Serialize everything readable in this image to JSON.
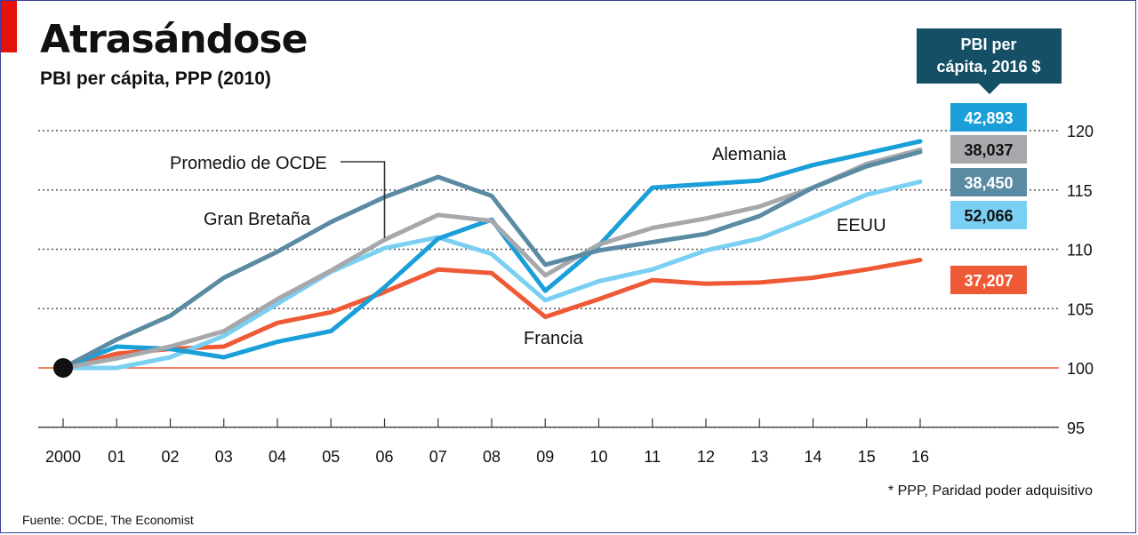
{
  "title": "Atrasándose",
  "subtitle": "PBI per cápita, PPP (2010)",
  "source": "Fuente: OCDE, The Economist",
  "footnote": "* PPP, Paridad poder adquisitivo",
  "legend_header": [
    "PBI per",
    "cápita, 2016 $"
  ],
  "colors": {
    "alemania": "#1a9fd8",
    "ocde": "#a6a8ab",
    "gran_bretana": "#5b8aa3",
    "eeuu": "#7ad0f2",
    "francia": "#ee5a36",
    "header": "#154f66",
    "baseline": "#ee5a36"
  },
  "chart_data": {
    "type": "line",
    "x": [
      "2000",
      "01",
      "02",
      "03",
      "04",
      "05",
      "06",
      "07",
      "08",
      "09",
      "10",
      "11",
      "12",
      "13",
      "14",
      "15",
      "16"
    ],
    "ylim": [
      95,
      121
    ],
    "yticks": [
      95,
      100,
      105,
      110,
      115,
      120
    ],
    "baseline": 100,
    "grid": true,
    "series": [
      {
        "key": "ocde",
        "name": "Promedio de OCDE",
        "color": "#a6a8ab",
        "values": [
          100,
          100.8,
          101.8,
          103.1,
          105.8,
          108.2,
          110.8,
          112.9,
          112.4,
          107.8,
          110.4,
          111.8,
          112.6,
          113.6,
          115.2,
          117.2,
          118.4
        ],
        "value_2016": "38,037"
      },
      {
        "key": "alemania",
        "name": "Alemania",
        "color": "#1a9fd8",
        "values": [
          100,
          101.8,
          101.6,
          100.9,
          102.2,
          103.1,
          106.8,
          110.9,
          112.5,
          106.5,
          110.3,
          115.2,
          115.5,
          115.8,
          117.1,
          118.1,
          119.1
        ],
        "value_2016": "42,893"
      },
      {
        "key": "gran_bretana",
        "name": "Gran Bretaña",
        "color": "#5b8aa3",
        "values": [
          100,
          102.4,
          104.4,
          107.6,
          109.8,
          112.3,
          114.4,
          116.1,
          114.5,
          108.7,
          109.9,
          110.6,
          111.3,
          112.8,
          115.2,
          117.0,
          118.2
        ],
        "value_2016": "38,450"
      },
      {
        "key": "eeuu",
        "name": "EEUU",
        "color": "#7ad0f2",
        "values": [
          100,
          100.0,
          100.9,
          102.7,
          105.4,
          108.1,
          110.1,
          111.0,
          109.6,
          105.7,
          107.3,
          108.3,
          109.9,
          110.9,
          112.7,
          114.6,
          115.7
        ],
        "value_2016": "52,066"
      },
      {
        "key": "francia",
        "name": "Francia",
        "color": "#ee5a36",
        "values": [
          100,
          101.2,
          101.6,
          101.8,
          103.8,
          104.7,
          106.4,
          108.3,
          108.0,
          104.3,
          105.8,
          107.4,
          107.1,
          107.2,
          107.6,
          108.3,
          109.1
        ],
        "value_2016": "37,207"
      }
    ]
  }
}
